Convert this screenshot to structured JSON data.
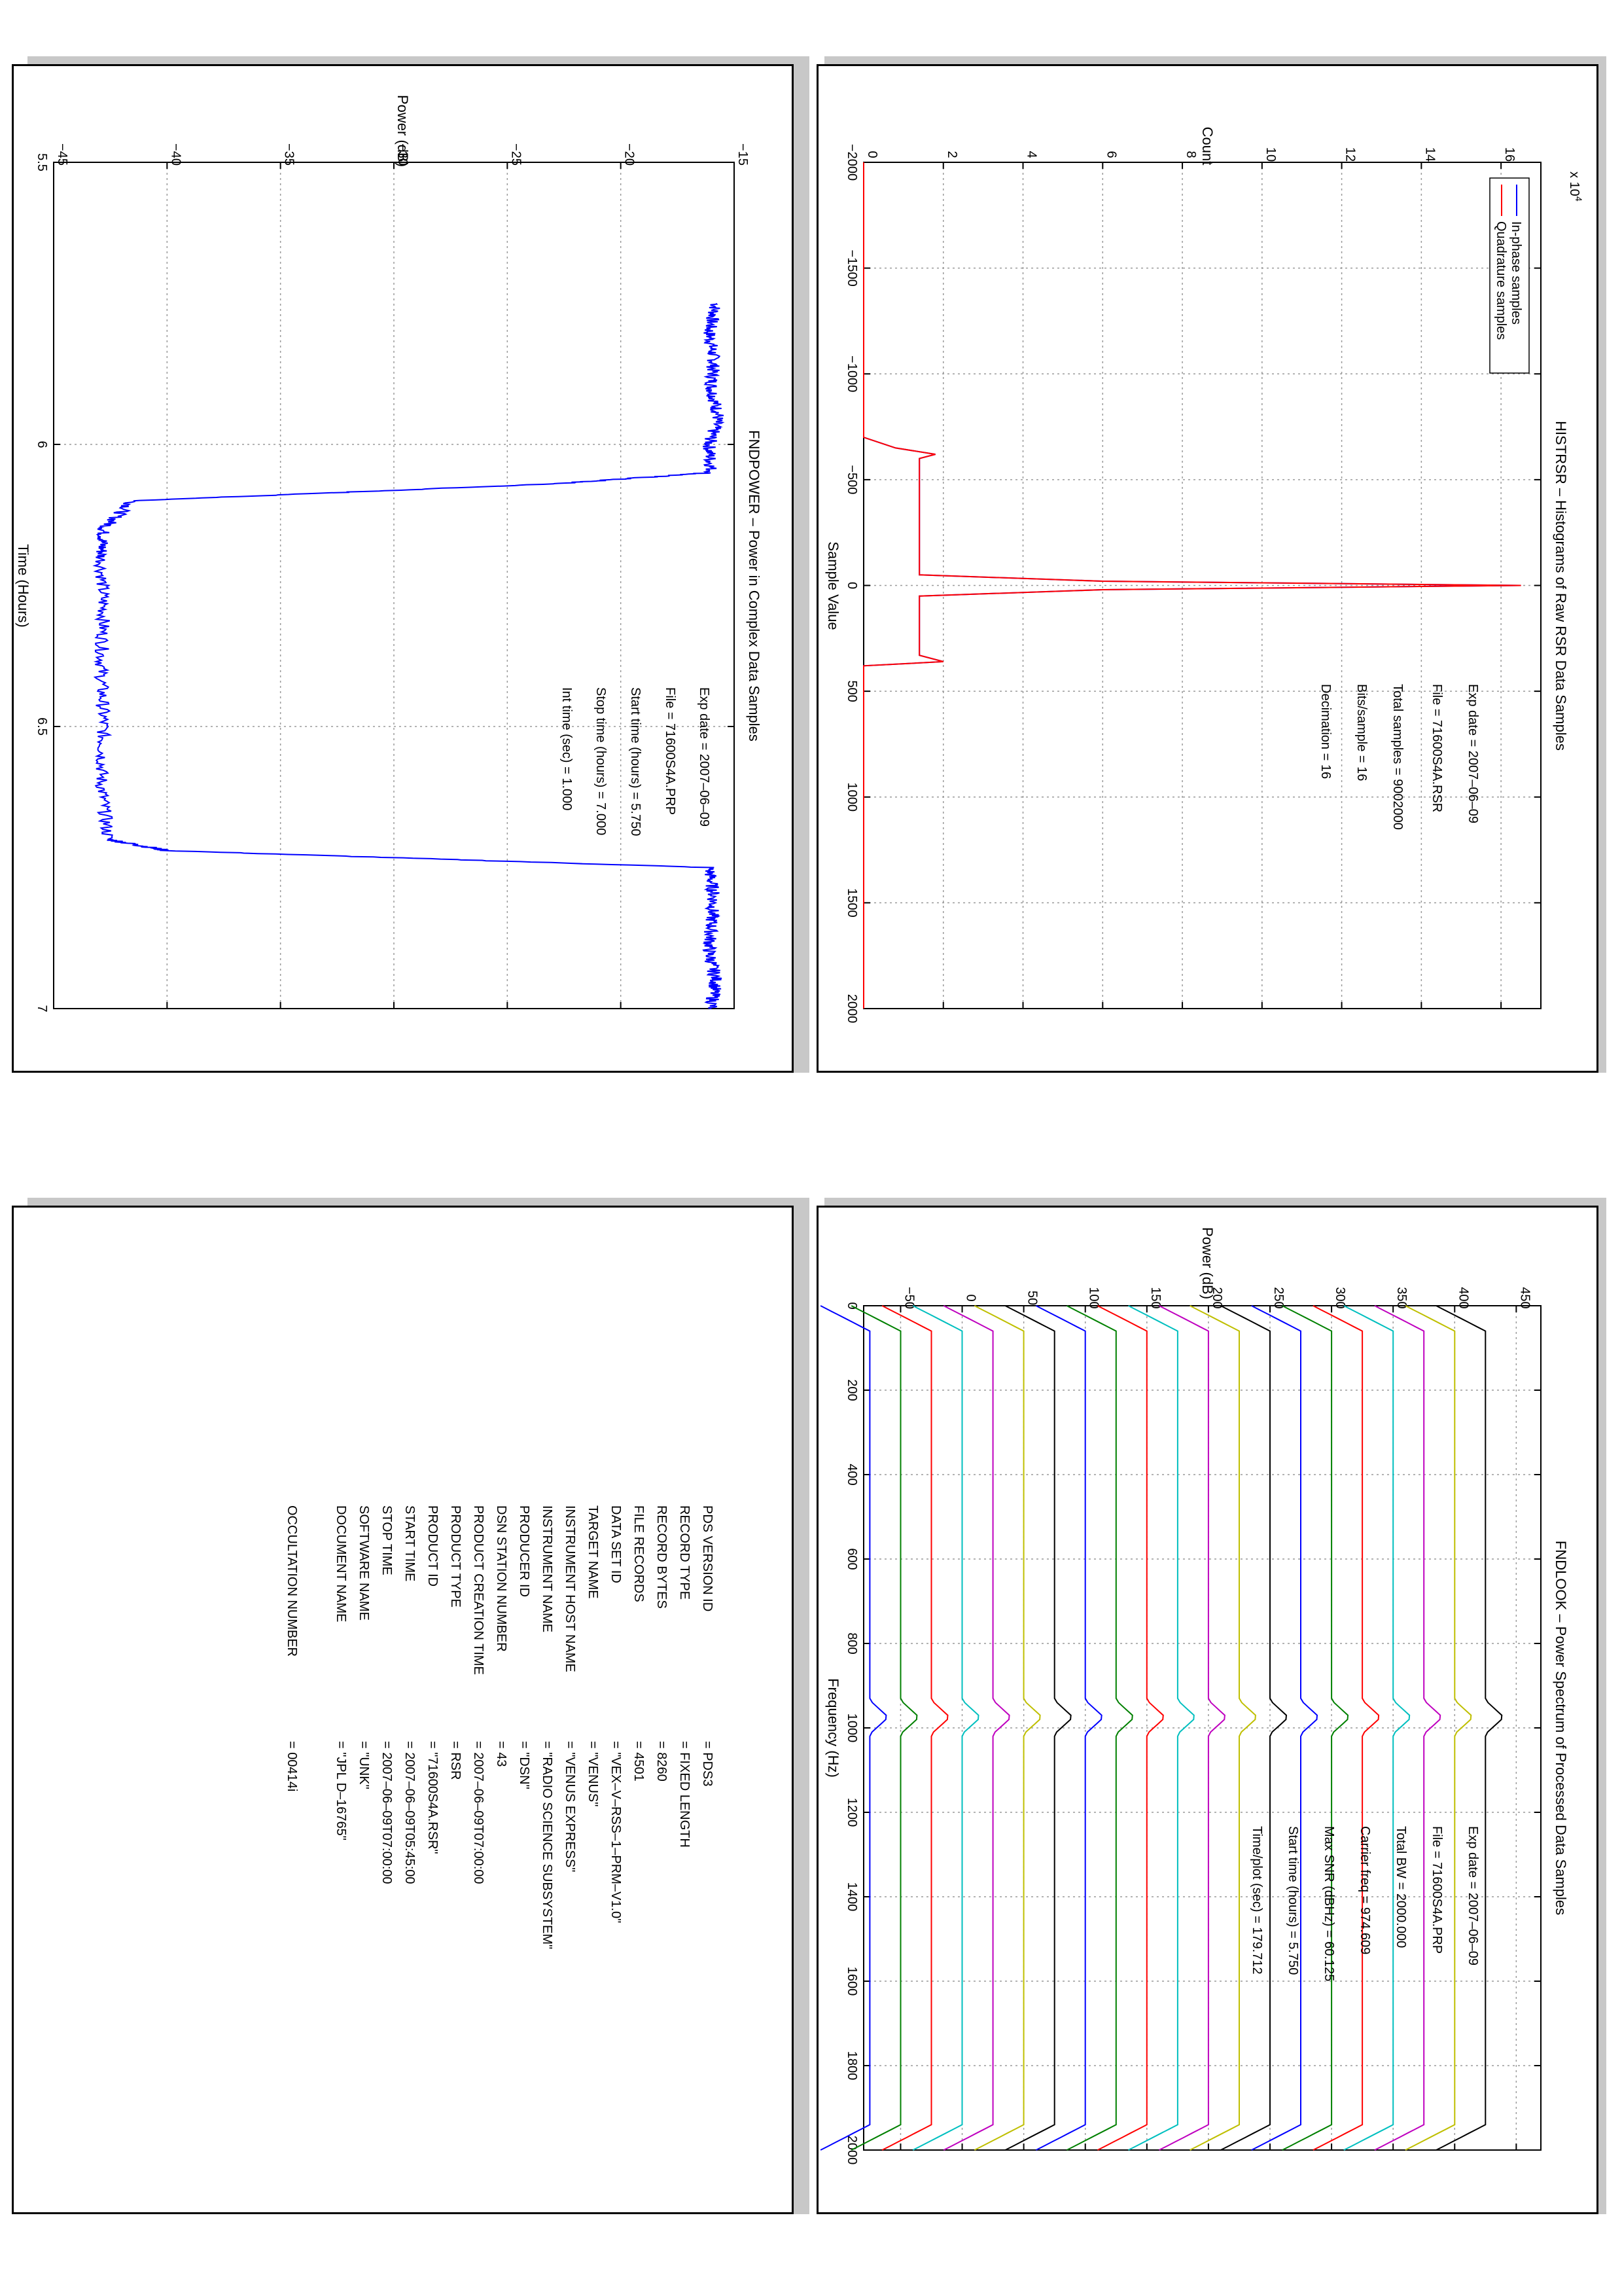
{
  "charts": {
    "histogram": {
      "title": "HISTRSR – Histograms of Raw RSR Data Samples",
      "xlabel": "Sample Value",
      "ylabel": "Count",
      "exponent": "x 10",
      "exponent_power": "4",
      "info": [
        "Exp date = 2007–06–09",
        "File = 71600S4A.RSR",
        "Total samples =   9002000",
        "Bits/sample   =        16",
        "Decimation    =        16"
      ]
    },
    "power": {
      "title": "FNDPOWER – Power in Complex Data Samples",
      "xlabel": "Time (Hours)",
      "ylabel": "Power (dB)",
      "info": [
        "Exp date = 2007–06–09",
        "File = 71600S4A.PRP",
        "Start time (hours) =  5.750",
        "Stop time (hours) =   7.000",
        "Int time (sec) =     1.000"
      ]
    },
    "spectrum": {
      "title": "FNDLOOK – Power Spectrum of Processed Data Samples",
      "xlabel": "Frequency (Hz)",
      "ylabel": "Power (dB)",
      "info": [
        "Exp date = 2007–06–09",
        "File = 71600S4A.PRP",
        "Total BW =      2000.000",
        "Carrier freq =    974.609",
        "Max SNR (dBHz) =   60.125",
        "Start time (hours) =  5.750",
        "Time/plot (sec) =   179.712"
      ]
    }
  },
  "chart_data": [
    {
      "type": "line",
      "title": "HISTRSR – Histograms of Raw RSR Data Samples",
      "xlabel": "Sample Value",
      "ylabel": "Count",
      "xlim": [
        -2000,
        2000
      ],
      "ylim": [
        0,
        170000
      ],
      "xticks": [
        -2000,
        -1500,
        -1000,
        -500,
        0,
        500,
        1000,
        1500,
        2000
      ],
      "yticks": [
        0,
        2,
        4,
        6,
        8,
        10,
        12,
        14,
        16
      ],
      "ytick_multiplier": 10000,
      "grid": true,
      "legend": "top-right",
      "series": [
        {
          "name": "In-phase samples",
          "color": "#0000ff",
          "x": [
            -2000,
            -700,
            -650,
            -620,
            -600,
            -50,
            -20,
            0,
            20,
            50,
            330,
            360,
            380,
            2000
          ],
          "y": [
            0,
            0,
            8000,
            18000,
            14000,
            14000,
            60000,
            165000,
            60000,
            14000,
            14000,
            20000,
            0,
            0
          ]
        },
        {
          "name": "Quadrature samples",
          "color": "#ff0000",
          "x": [
            -2000,
            -700,
            -650,
            -620,
            -600,
            -50,
            -20,
            0,
            20,
            50,
            330,
            360,
            380,
            2000
          ],
          "y": [
            0,
            0,
            8000,
            18000,
            14000,
            14000,
            60000,
            165000,
            60000,
            14000,
            14000,
            20000,
            0,
            0
          ]
        }
      ]
    },
    {
      "type": "line",
      "title": "FNDPOWER – Power in Complex Data Samples",
      "xlabel": "Time (Hours)",
      "ylabel": "Power (dB)",
      "xlim": [
        5.5,
        7
      ],
      "ylim": [
        -45,
        -15
      ],
      "xticks": [
        5.5,
        6,
        6.5,
        7
      ],
      "yticks": [
        -45,
        -40,
        -35,
        -30,
        -25,
        -20,
        -15
      ],
      "grid": true,
      "series": [
        {
          "color": "#0000ff",
          "x": [
            5.75,
            5.8,
            5.85,
            5.9,
            5.95,
            6.0,
            6.05,
            6.07,
            6.1,
            6.15,
            6.2,
            6.3,
            6.4,
            6.5,
            6.6,
            6.7,
            6.72,
            6.75,
            6.8,
            6.85,
            6.9,
            6.95,
            7.0
          ],
          "y": [
            -15.8,
            -16.1,
            -15.9,
            -16.0,
            -15.7,
            -16.1,
            -16.0,
            -23.0,
            -41.5,
            -42.8,
            -42.9,
            -42.8,
            -42.9,
            -42.8,
            -42.9,
            -42.6,
            -40.0,
            -16.1,
            -15.9,
            -16.0,
            -16.1,
            -15.8,
            -16.0
          ]
        }
      ]
    },
    {
      "type": "line",
      "title": "FNDLOOK – Power Spectrum of Processed Data Samples",
      "xlabel": "Frequency (Hz)",
      "ylabel": "Power (dB)",
      "xlim": [
        0,
        2000
      ],
      "ylim": [
        -80,
        470
      ],
      "xticks": [
        0,
        200,
        400,
        600,
        800,
        1000,
        1200,
        1400,
        1600,
        1800,
        2000
      ],
      "yticks": [
        -50,
        0,
        50,
        100,
        150,
        200,
        250,
        300,
        350,
        400,
        450
      ],
      "grid": true,
      "trace_offsets": [
        -75,
        -50,
        -25,
        0,
        25,
        50,
        75,
        100,
        125,
        150,
        175,
        200,
        225,
        250,
        275,
        300,
        325,
        350,
        375,
        400,
        425
      ],
      "trace_colors": [
        "#0000ff",
        "#008000",
        "#ff0000",
        "#00bfbf",
        "#bf00bf",
        "#bfbf00",
        "#000000",
        "#0000ff",
        "#008000",
        "#ff0000",
        "#00bfbf",
        "#bf00bf",
        "#bfbf00",
        "#000000",
        "#0000ff",
        "#008000",
        "#ff0000",
        "#00bfbf",
        "#bf00bf",
        "#bfbf00",
        "#000000"
      ]
    }
  ],
  "pds_label": {
    "fields": [
      {
        "key": "PDS VERSION ID",
        "value": "=   PDS3"
      },
      {
        "key": "RECORD TYPE",
        "value": "=   FIXED LENGTH"
      },
      {
        "key": "RECORD BYTES",
        "value": "=   8260"
      },
      {
        "key": "FILE RECORDS",
        "value": "=   4501"
      },
      {
        "key": "DATA SET ID",
        "value": "=   \"VEX–V–RSS–1–PRM–V1.0\""
      },
      {
        "key": "TARGET NAME",
        "value": "=   \"VENUS\""
      },
      {
        "key": "INSTRUMENT HOST NAME",
        "value": "=   \"VENUS EXPRESS\""
      },
      {
        "key": "INSTRUMENT NAME",
        "value": "=   \"RADIO SCIENCE SUBSYSTEM\""
      },
      {
        "key": "PRODUCER ID",
        "value": "=   \"DSN\""
      },
      {
        "key": "DSN STATION NUMBER",
        "value": "=   43"
      },
      {
        "key": "PRODUCT CREATION TIME",
        "value": "=   2007–06–09T07:00:00"
      },
      {
        "key": "PRODUCT TYPE",
        "value": "=   RSR"
      },
      {
        "key": "PRODUCT ID",
        "value": "=   \"71600S4A.RSR\""
      },
      {
        "key": "START TIME",
        "value": "=   2007–06–09T05:45:00"
      },
      {
        "key": "STOP TIME",
        "value": "=   2007–06–09T07:00:00"
      },
      {
        "key": "SOFTWARE NAME",
        "value": "=   \"UNK\""
      },
      {
        "key": "DOCUMENT NAME",
        "value": "=   \"JPL D–16765\""
      },
      {
        "key": "OCCULTATION NUMBER",
        "value": "=   00414i"
      }
    ]
  }
}
